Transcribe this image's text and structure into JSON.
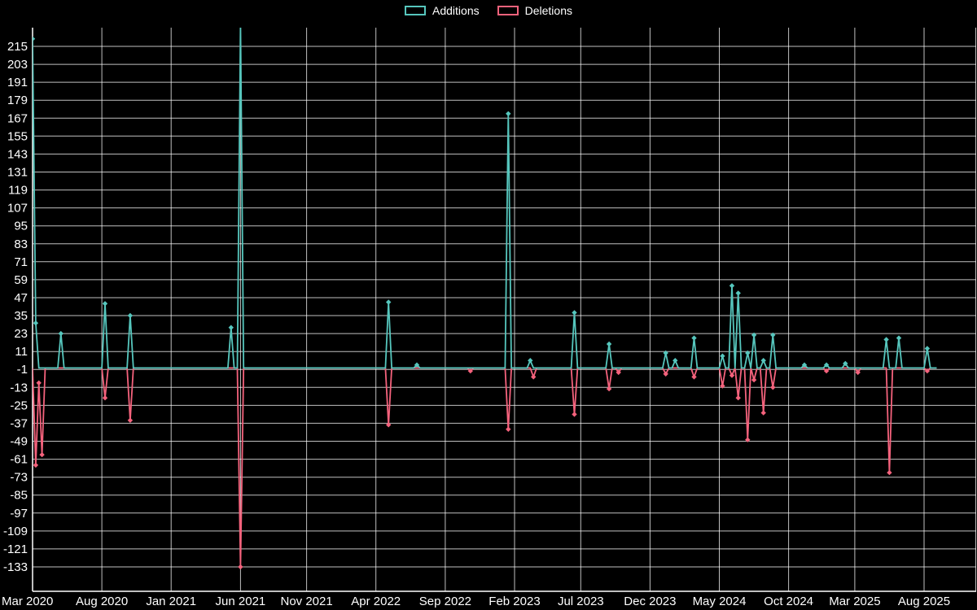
{
  "legend": {
    "items": [
      {
        "label": "Additions"
      },
      {
        "label": "Deletions"
      }
    ]
  },
  "chart_data": {
    "type": "line",
    "title": "",
    "background": "#000000",
    "grid": true,
    "legend_position": "top",
    "baseline": 0,
    "ylim": [
      -149,
      227
    ],
    "y_axis": {
      "tick_step": 12,
      "tick_values": [
        215,
        203,
        191,
        179,
        167,
        155,
        143,
        131,
        119,
        107,
        95,
        83,
        71,
        59,
        47,
        35,
        23,
        11,
        -1,
        -13,
        -25,
        -37,
        -49,
        -61,
        -73,
        -85,
        -97,
        -109,
        -121,
        -133
      ]
    },
    "x_axis": {
      "unit": "week",
      "total_weeks": 288,
      "tick_labels": [
        "Mar 2020",
        "Aug 2020",
        "Jan 2021",
        "Jun 2021",
        "Nov 2021",
        "Apr 2022",
        "Sep 2022",
        "Feb 2023",
        "Jul 2023",
        "Dec 2023",
        "May 2024",
        "Oct 2024",
        "Mar 2025",
        "Aug 2025"
      ],
      "tick_weeks": [
        0,
        22,
        44,
        66,
        87,
        109,
        131,
        153,
        174,
        196,
        218,
        240,
        261,
        283
      ]
    },
    "series": [
      {
        "name": "Additions",
        "color": "#56c6bd",
        "default": 0,
        "points": {
          "0": 220,
          "1": 30,
          "9": 23,
          "23": 43,
          "31": 35,
          "63": 27,
          "66": 230,
          "113": 44,
          "122": 2,
          "151": 170,
          "158": 5,
          "172": 37,
          "183": 16,
          "201": 10,
          "204": 5,
          "210": 20,
          "219": 8,
          "222": 55,
          "224": 50,
          "227": 10,
          "229": 22,
          "232": 5,
          "235": 22,
          "245": 2,
          "252": 2,
          "258": 3,
          "271": 19,
          "275": 20,
          "284": 13
        }
      },
      {
        "name": "Deletions",
        "color": "#f4627c",
        "default": 0,
        "points": {
          "1": -65,
          "2": -10,
          "3": -58,
          "23": -20,
          "31": -35,
          "66": -133,
          "113": -38,
          "139": -2,
          "151": -41,
          "159": -6,
          "172": -31,
          "183": -14,
          "186": -3,
          "201": -4,
          "210": -6,
          "219": -12,
          "222": -5,
          "224": -20,
          "227": -48,
          "229": -8,
          "232": -30,
          "235": -13,
          "252": -2,
          "262": -3,
          "272": -70,
          "284": -2
        }
      }
    ]
  }
}
